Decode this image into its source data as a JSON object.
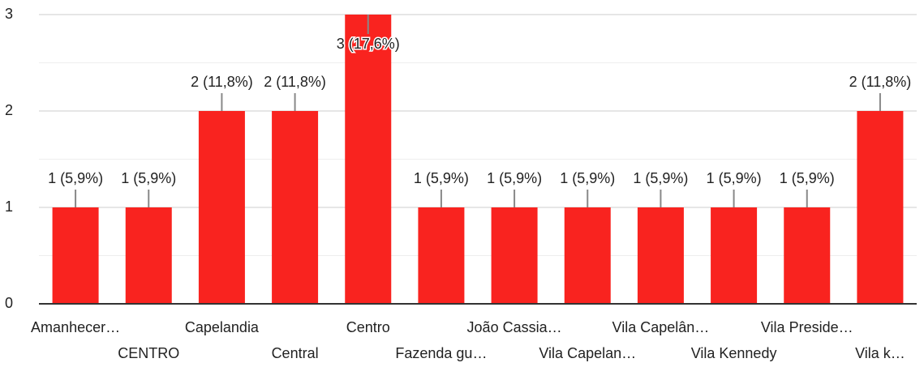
{
  "chart_data": {
    "type": "bar",
    "categories": [
      "Amanhecer…",
      "CENTRO",
      "Capelandia",
      "Central",
      "Centro",
      "Fazenda gu…",
      "João Cassia…",
      "Vila Capelan…",
      "Vila Capelân…",
      "Vila Kennedy",
      "Vila Preside…",
      "Vila k…"
    ],
    "values": [
      1,
      1,
      2,
      2,
      3,
      1,
      1,
      1,
      1,
      1,
      1,
      2
    ],
    "value_labels": [
      "1 (5,9%)",
      "1 (5,9%)",
      "2 (11,8%)",
      "2 (11,8%)",
      "3 (17,6%)",
      "1 (5,9%)",
      "1 (5,9%)",
      "1 (5,9%)",
      "1 (5,9%)",
      "1 (5,9%)",
      "1 (5,9%)",
      "2 (11,8%)"
    ],
    "color": "#f9231f",
    "ylim": [
      0,
      3
    ],
    "yticks": [
      0,
      1,
      2,
      3
    ],
    "yminor_ticks": [
      0.5,
      1.5,
      2.5
    ],
    "grid": true
  }
}
